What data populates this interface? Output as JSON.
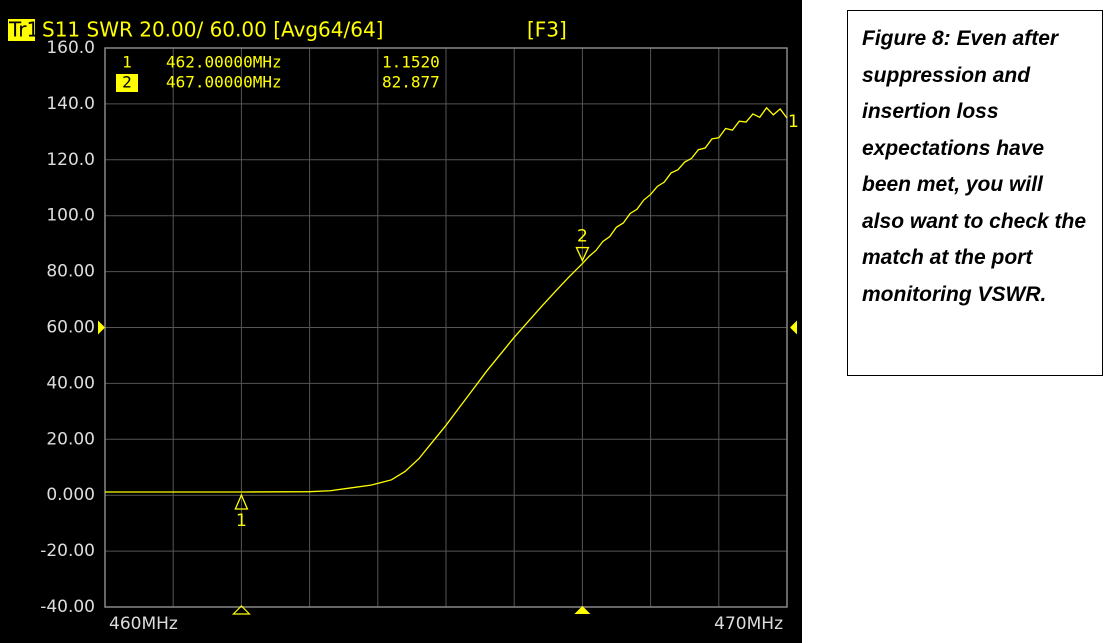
{
  "chart_data": {
    "type": "line",
    "trace_tag": "Tr1",
    "title": "S11 SWR 20.00/ 60.00 [Avg64/64]",
    "function_key": "[F3]",
    "trace_label": "1",
    "xlim": [
      460,
      470
    ],
    "xticks": [
      {
        "value": 460,
        "label": "460MHz"
      },
      {
        "value": 470,
        "label": "470MHz"
      }
    ],
    "ylim": [
      -40,
      160
    ],
    "yticks": [
      {
        "value": -40,
        "label": "-40.00"
      },
      {
        "value": -20,
        "label": "-20.00"
      },
      {
        "value": 0,
        "label": "0.000"
      },
      {
        "value": 20,
        "label": "20.00"
      },
      {
        "value": 40,
        "label": "40.00"
      },
      {
        "value": 60,
        "label": "60.00"
      },
      {
        "value": 80,
        "label": "80.00"
      },
      {
        "value": 100,
        "label": "100.0"
      },
      {
        "value": 120,
        "label": "120.0"
      },
      {
        "value": 140,
        "label": "140.0"
      },
      {
        "value": 160,
        "label": "160.0"
      }
    ],
    "grid": true,
    "series": [
      {
        "color": "#ffff00",
        "x": [
          460,
          461,
          462,
          463,
          463.3,
          463.6,
          463.9,
          464.2,
          464.4,
          464.6,
          464.8,
          465,
          465.2,
          465.4,
          465.6,
          465.8,
          466,
          466.2,
          466.4,
          466.6,
          466.8,
          467,
          467.1,
          467.2,
          467.3,
          467.4,
          467.5,
          467.6,
          467.7,
          467.8,
          467.9,
          468,
          468.1,
          468.2,
          468.3,
          468.4,
          468.5,
          468.6,
          468.7,
          468.8,
          468.9,
          469,
          469.1,
          469.2,
          469.3,
          469.4,
          469.5,
          469.6,
          469.7,
          469.8,
          469.9,
          470
        ],
        "values": [
          1.15,
          1.15,
          1.152,
          1.25,
          1.6,
          2.6,
          3.6,
          5.5,
          8.5,
          13,
          19,
          25,
          31.5,
          38,
          44.5,
          50.5,
          56.5,
          62,
          67.5,
          72.8,
          78,
          82.877,
          85.5,
          87.6,
          90.8,
          92.5,
          95.9,
          97.4,
          100.8,
          102.3,
          105.6,
          107.6,
          110.5,
          112,
          115.3,
          116.4,
          119.2,
          120.5,
          123.6,
          124.2,
          127.5,
          127.9,
          131.2,
          130.6,
          133.8,
          133.5,
          136.4,
          135.2,
          138.6,
          136.1,
          138.2,
          134.9
        ]
      }
    ],
    "markers": [
      {
        "label": "1",
        "x": 462,
        "freq": "462.00000MHz",
        "value": 1.152,
        "value_label": "1.1520"
      },
      {
        "label": "2",
        "x": 467,
        "freq": "467.00000MHz",
        "value": 82.877,
        "value_label": "82.877",
        "active": true
      }
    ]
  },
  "caption": "Figure 8: Even after suppression and insertion loss expectations have been met, you will also want to check the match at the port monitoring VSWR."
}
